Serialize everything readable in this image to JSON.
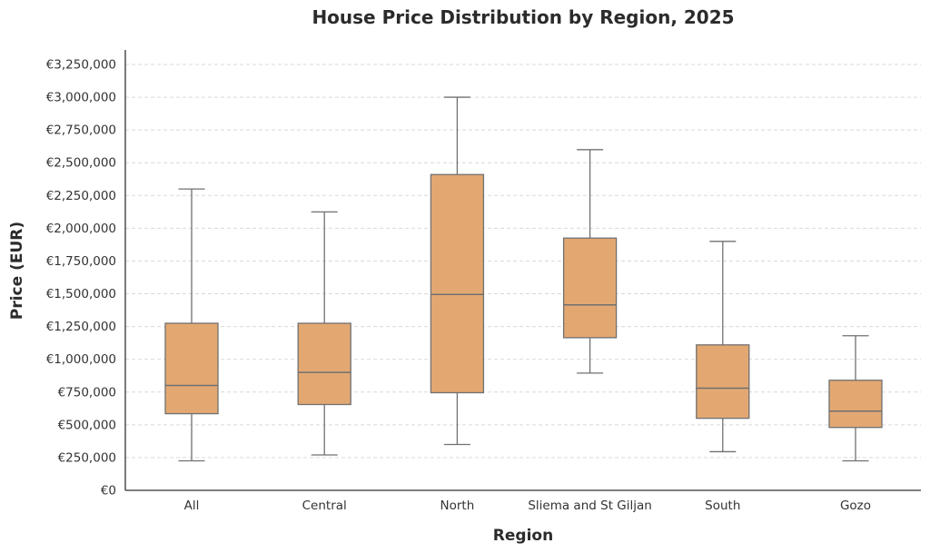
{
  "chart_data": {
    "type": "box",
    "title": "House Price Distribution by Region, 2025",
    "xlabel": "Region",
    "ylabel": "Price (EUR)",
    "ylim": [
      0,
      3250000
    ],
    "yticks": [
      0,
      250000,
      500000,
      750000,
      1000000,
      1250000,
      1500000,
      1750000,
      2000000,
      2250000,
      2500000,
      2750000,
      3000000,
      3250000
    ],
    "ytick_labels": [
      "€0",
      "€250,000",
      "€500,000",
      "€750,000",
      "€1,000,000",
      "€1,250,000",
      "€1,500,000",
      "€1,750,000",
      "€2,000,000",
      "€2,250,000",
      "€2,500,000",
      "€2,750,000",
      "€3,000,000",
      "€3,250,000"
    ],
    "grid": true,
    "box_color": "#e3a872",
    "edge_color": "#707070",
    "categories": [
      "All",
      "Central",
      "North",
      "Sliema and St Giljan",
      "South",
      "Gozo"
    ],
    "boxes": [
      {
        "min": 225000,
        "q1": 585000,
        "median": 800000,
        "q3": 1275000,
        "max": 2300000
      },
      {
        "min": 270000,
        "q1": 655000,
        "median": 900000,
        "q3": 1275000,
        "max": 2125000
      },
      {
        "min": 350000,
        "q1": 745000,
        "median": 1495000,
        "q3": 2410000,
        "max": 3000000
      },
      {
        "min": 895000,
        "q1": 1165000,
        "median": 1415000,
        "q3": 1925000,
        "max": 2600000
      },
      {
        "min": 295000,
        "q1": 550000,
        "median": 780000,
        "q3": 1110000,
        "max": 1900000
      },
      {
        "min": 225000,
        "q1": 480000,
        "median": 605000,
        "q3": 840000,
        "max": 1180000
      }
    ]
  }
}
